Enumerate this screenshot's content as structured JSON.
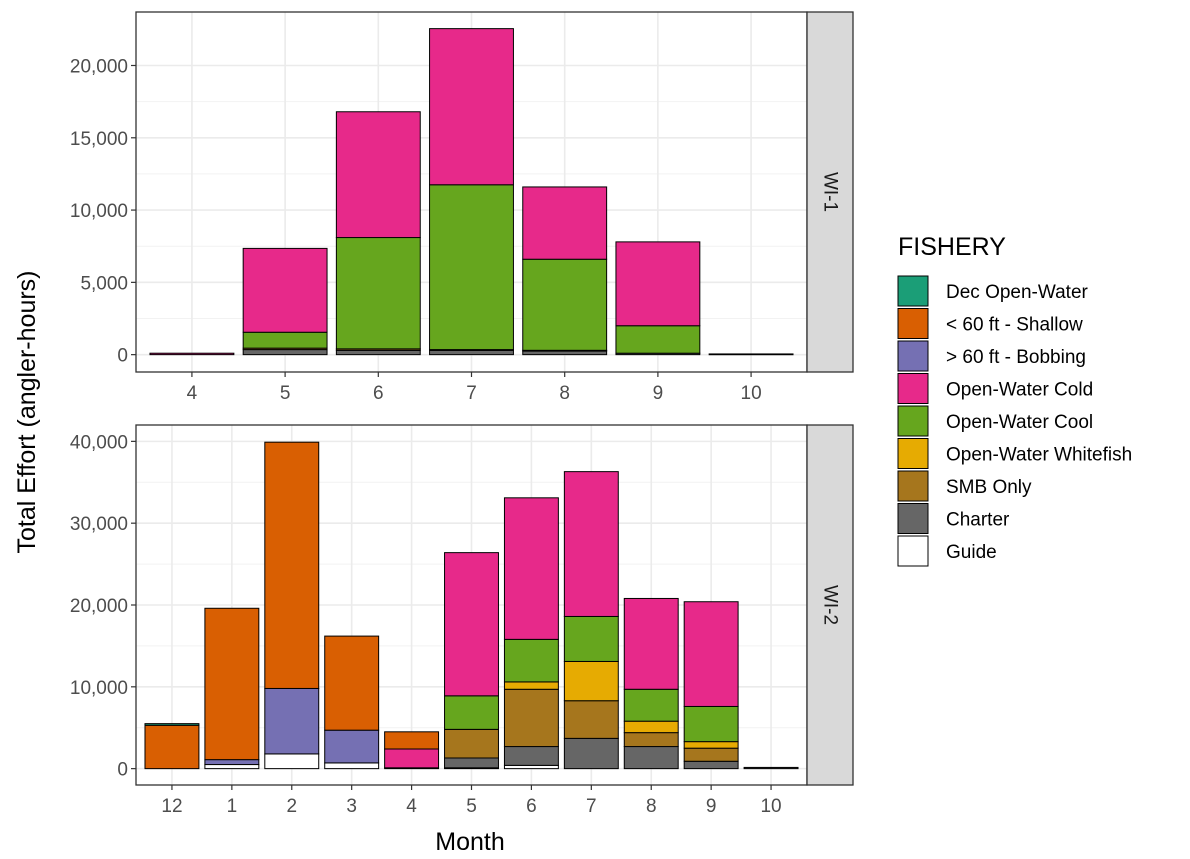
{
  "chart_data": {
    "type": "bar",
    "stacked": true,
    "ylabel": "Total Effort (angler-hours)",
    "xlabel": "Month",
    "grid": true,
    "legend_position": "right",
    "legend": {
      "title": "FISHERY",
      "items": [
        {
          "label": "Dec Open-Water",
          "color": "#1B9E77"
        },
        {
          "label": "< 60 ft - Shallow",
          "color": "#D95F02"
        },
        {
          "label": "> 60 ft - Bobbing",
          "color": "#7570B3"
        },
        {
          "label": "Open-Water Cold",
          "color": "#E7298A"
        },
        {
          "label": "Open-Water Cool",
          "color": "#66A61E"
        },
        {
          "label": "Open-Water Whitefish",
          "color": "#E6AB02"
        },
        {
          "label": "SMB Only",
          "color": "#A6761D"
        },
        {
          "label": "Charter",
          "color": "#666666"
        },
        {
          "label": "Guide",
          "color": "#FFFFFF"
        }
      ]
    },
    "panels": [
      {
        "strip": "WI-1",
        "categories": [
          "4",
          "5",
          "6",
          "7",
          "8",
          "9",
          "10"
        ],
        "ylim": [
          -1200,
          23700
        ],
        "yticks": [
          0,
          5000,
          10000,
          15000,
          20000
        ],
        "ytick_labels": [
          "0",
          "5,000",
          "10,000",
          "15,000",
          "20,000"
        ],
        "bars": [
          {
            "x": "4",
            "segments": [
              {
                "fishery": "Open-Water Cold",
                "value": 100
              }
            ]
          },
          {
            "x": "5",
            "segments": [
              {
                "fishery": "Charter",
                "value": 350
              },
              {
                "fishery": "SMB Only",
                "value": 100
              },
              {
                "fishery": "Open-Water Cool",
                "value": 1100
              },
              {
                "fishery": "Open-Water Cold",
                "value": 5800
              }
            ]
          },
          {
            "x": "6",
            "segments": [
              {
                "fishery": "Charter",
                "value": 300
              },
              {
                "fishery": "SMB Only",
                "value": 100
              },
              {
                "fishery": "Open-Water Cool",
                "value": 7700
              },
              {
                "fishery": "Open-Water Cold",
                "value": 8700
              }
            ]
          },
          {
            "x": "7",
            "segments": [
              {
                "fishery": "Charter",
                "value": 300
              },
              {
                "fishery": "SMB Only",
                "value": 50
              },
              {
                "fishery": "Open-Water Cool",
                "value": 11400
              },
              {
                "fishery": "Open-Water Cold",
                "value": 10800
              }
            ]
          },
          {
            "x": "8",
            "segments": [
              {
                "fishery": "Charter",
                "value": 250
              },
              {
                "fishery": "SMB Only",
                "value": 50
              },
              {
                "fishery": "Open-Water Cool",
                "value": 6300
              },
              {
                "fishery": "Open-Water Cold",
                "value": 5000
              }
            ]
          },
          {
            "x": "9",
            "segments": [
              {
                "fishery": "Charter",
                "value": 100
              },
              {
                "fishery": "Open-Water Cool",
                "value": 1900
              },
              {
                "fishery": "Open-Water Cold",
                "value": 5800
              }
            ]
          },
          {
            "x": "10",
            "segments": [
              {
                "fishery": "Open-Water Cold",
                "value": 50
              }
            ]
          }
        ]
      },
      {
        "strip": "WI-2",
        "categories": [
          "12",
          "1",
          "2",
          "3",
          "4",
          "5",
          "6",
          "7",
          "8",
          "9",
          "10"
        ],
        "ylim": [
          -2000,
          42000
        ],
        "yticks": [
          0,
          10000,
          20000,
          30000,
          40000
        ],
        "ytick_labels": [
          "0",
          "10,000",
          "20,000",
          "30,000",
          "40,000"
        ],
        "bars": [
          {
            "x": "12",
            "segments": [
              {
                "fishery": "< 60 ft - Shallow",
                "value": 5300
              },
              {
                "fishery": "Dec Open-Water",
                "value": 200
              }
            ]
          },
          {
            "x": "1",
            "segments": [
              {
                "fishery": "Guide",
                "value": 500
              },
              {
                "fishery": "> 60 ft - Bobbing",
                "value": 600
              },
              {
                "fishery": "< 60 ft - Shallow",
                "value": 18500
              }
            ]
          },
          {
            "x": "2",
            "segments": [
              {
                "fishery": "Guide",
                "value": 1800
              },
              {
                "fishery": "> 60 ft - Bobbing",
                "value": 8000
              },
              {
                "fishery": "< 60 ft - Shallow",
                "value": 30100
              }
            ]
          },
          {
            "x": "3",
            "segments": [
              {
                "fishery": "Guide",
                "value": 700
              },
              {
                "fishery": "> 60 ft - Bobbing",
                "value": 4000
              },
              {
                "fishery": "< 60 ft - Shallow",
                "value": 11500
              }
            ]
          },
          {
            "x": "4",
            "segments": [
              {
                "fishery": "Charter",
                "value": 100
              },
              {
                "fishery": "Open-Water Cold",
                "value": 2300
              },
              {
                "fishery": "< 60 ft - Shallow",
                "value": 2100
              }
            ]
          },
          {
            "x": "5",
            "segments": [
              {
                "fishery": "Guide",
                "value": 100
              },
              {
                "fishery": "Charter",
                "value": 1200
              },
              {
                "fishery": "SMB Only",
                "value": 3500
              },
              {
                "fishery": "Open-Water Cool",
                "value": 4100
              },
              {
                "fishery": "Open-Water Cold",
                "value": 17500
              }
            ]
          },
          {
            "x": "6",
            "segments": [
              {
                "fishery": "Guide",
                "value": 400
              },
              {
                "fishery": "Charter",
                "value": 2300
              },
              {
                "fishery": "SMB Only",
                "value": 7000
              },
              {
                "fishery": "Open-Water Whitefish",
                "value": 900
              },
              {
                "fishery": "Open-Water Cool",
                "value": 5200
              },
              {
                "fishery": "Open-Water Cold",
                "value": 17300
              }
            ]
          },
          {
            "x": "7",
            "segments": [
              {
                "fishery": "Charter",
                "value": 3700
              },
              {
                "fishery": "SMB Only",
                "value": 4600
              },
              {
                "fishery": "Open-Water Whitefish",
                "value": 4800
              },
              {
                "fishery": "Open-Water Cool",
                "value": 5500
              },
              {
                "fishery": "Open-Water Cold",
                "value": 17700
              }
            ]
          },
          {
            "x": "8",
            "segments": [
              {
                "fishery": "Charter",
                "value": 2700
              },
              {
                "fishery": "SMB Only",
                "value": 1700
              },
              {
                "fishery": "Open-Water Whitefish",
                "value": 1400
              },
              {
                "fishery": "Open-Water Cool",
                "value": 3900
              },
              {
                "fishery": "Open-Water Cold",
                "value": 11100
              }
            ]
          },
          {
            "x": "9",
            "segments": [
              {
                "fishery": "Charter",
                "value": 900
              },
              {
                "fishery": "SMB Only",
                "value": 1600
              },
              {
                "fishery": "Open-Water Whitefish",
                "value": 800
              },
              {
                "fishery": "Open-Water Cool",
                "value": 4300
              },
              {
                "fishery": "Open-Water Cold",
                "value": 12800
              }
            ]
          },
          {
            "x": "10",
            "segments": [
              {
                "fishery": "Charter",
                "value": 150
              }
            ]
          }
        ]
      }
    ]
  }
}
